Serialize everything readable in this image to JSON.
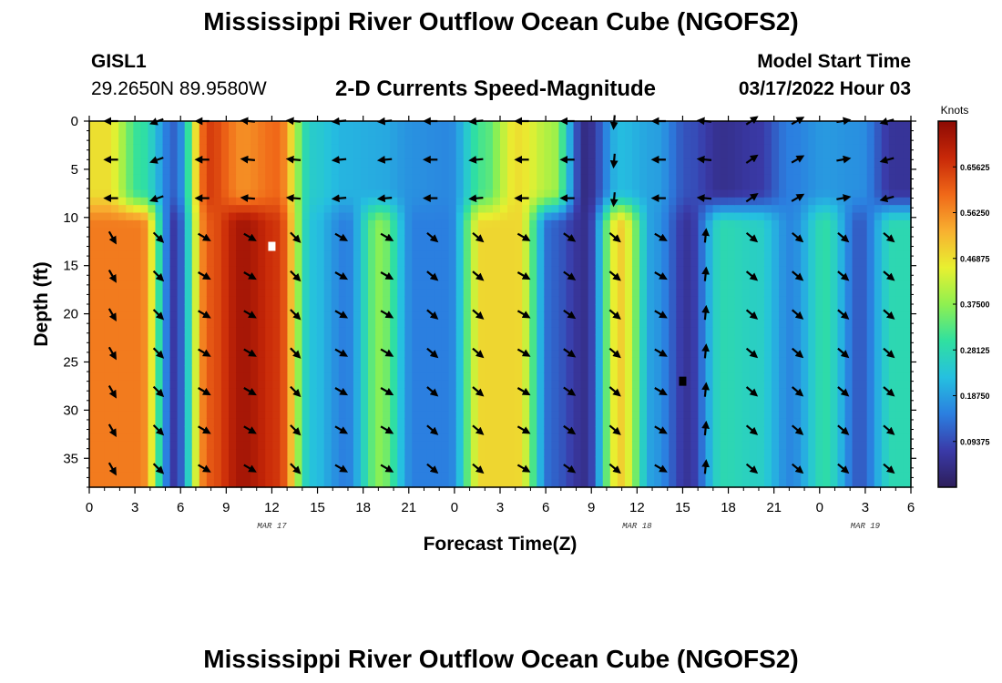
{
  "title": "Mississippi River Outflow Ocean Cube (NGOFS2)",
  "station_id": "GISL1",
  "station_coords": "29.2650N  89.9580W",
  "plot_subtitle": "2-D Currents Speed-Magnitude",
  "model_start_label": "Model Start Time",
  "model_start_value": "03/17/2022 Hour 03",
  "colors": {
    "colormap": [
      "#2d1e5a",
      "#3a3aa8",
      "#2b7fe0",
      "#25c0e0",
      "#30e0a0",
      "#8ff050",
      "#e8f030",
      "#f8b030",
      "#f06818",
      "#c82808",
      "#8c0a04"
    ]
  },
  "chart_data": {
    "type": "heatmap",
    "xlabel": "Forecast Time(Z)",
    "ylabel": "Depth (ft)",
    "x_tick_labels": [
      "0",
      "3",
      "6",
      "9",
      "12",
      "15",
      "18",
      "21",
      "0",
      "3",
      "6",
      "9",
      "12",
      "15",
      "18",
      "21",
      "0",
      "3",
      "6"
    ],
    "x_hours_range": [
      0,
      54
    ],
    "date_labels": [
      {
        "hour": 12,
        "label": "MAR 17"
      },
      {
        "hour": 36,
        "label": "MAR 18"
      },
      {
        "hour": 51,
        "label": "MAR 19"
      }
    ],
    "y_ticks": [
      0,
      5,
      10,
      15,
      20,
      25,
      30,
      35
    ],
    "ylim": [
      38,
      0
    ],
    "colorbar": {
      "label": "Knots",
      "tick_labels": [
        "0.65625",
        "0.56250",
        "0.46875",
        "0.37500",
        "0.28125",
        "0.18750",
        "0.09375"
      ],
      "tick_values": [
        0.65625,
        0.5625,
        0.46875,
        0.375,
        0.28125,
        0.1875,
        0.09375
      ],
      "range": [
        0,
        0.75
      ]
    },
    "speed_upper_layer_0_8ft": [
      0.47,
      0.3,
      0.12,
      0.65,
      0.56,
      0.6,
      0.25,
      0.21,
      0.2,
      0.17,
      0.16,
      0.32,
      0.47,
      0.4,
      0.04,
      0.22,
      0.19,
      0.1,
      0.05,
      0.07,
      0.15,
      0.18,
      0.17,
      0.06
    ],
    "speed_lower_layer_10_38ft": [
      0.58,
      0.58,
      0.07,
      0.62,
      0.72,
      0.66,
      0.23,
      0.15,
      0.37,
      0.15,
      0.15,
      0.48,
      0.48,
      0.12,
      0.05,
      0.49,
      0.18,
      0.06,
      0.28,
      0.26,
      0.16,
      0.29,
      0.11,
      0.28
    ],
    "arrow_depths": [
      0,
      4,
      8,
      12,
      16,
      20,
      24,
      28,
      32,
      36
    ],
    "arrow_hours": [
      1.5,
      4.5,
      7.5,
      10.5,
      13.5,
      16.5,
      19.5,
      22.5,
      25.5,
      28.5,
      31.5,
      34.5,
      37.5,
      40.5,
      43.5,
      46.5,
      49.5,
      52.5
    ],
    "arrow_direction_upper_deg": [
      180,
      200,
      180,
      175,
      175,
      185,
      185,
      180,
      185,
      180,
      180,
      265,
      180,
      175,
      35,
      30,
      10,
      195
    ],
    "arrow_direction_lower_deg": [
      300,
      315,
      330,
      330,
      315,
      330,
      330,
      320,
      320,
      330,
      325,
      320,
      330,
      85,
      320,
      320,
      320,
      320
    ],
    "markers": [
      {
        "hour": 12,
        "depth": 13,
        "color": "#ffffff"
      },
      {
        "hour": 39,
        "depth": 27,
        "color": "#000000"
      }
    ]
  }
}
